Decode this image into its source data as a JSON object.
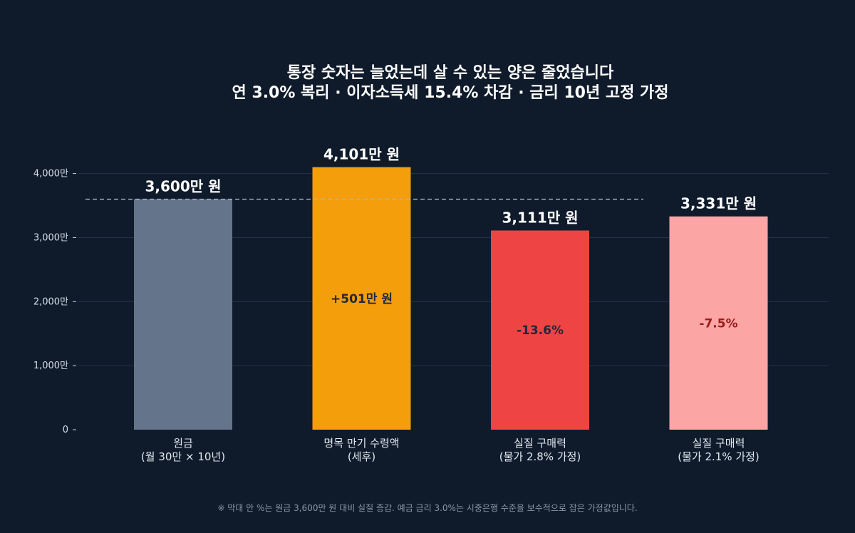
{
  "chart_data": {
    "type": "bar",
    "title": "통장 숫자는 늘었는데 살 수 있는 양은 줄었습니다",
    "subtitle": "연 3.0% 복리 · 이자소득세 15.4% 차감 · 금리 10년 고정 가정",
    "footnote": "※ 막대 안 %는 원금 3,600만 원 대비 실질 증감. 예금 금리 3.0%는 시중은행 수준을 보수적으로 잡은 가정값입니다.",
    "categories": [
      [
        "원금",
        "(월 30만 × 10년)"
      ],
      [
        "명목 만기 수령액",
        "(세후)"
      ],
      [
        "실질 구매력",
        "(물가 2.8% 가정)"
      ],
      [
        "실질 구매력",
        "(물가 2.1% 가정)"
      ]
    ],
    "values": [
      3600,
      4101,
      3111,
      3331
    ],
    "value_labels": [
      "3,600만 원",
      "4,101만 원",
      "3,111만 원",
      "3,331만 원"
    ],
    "inner_labels": [
      "",
      "+501만 원",
      "-13.6%",
      "-7.5%"
    ],
    "colors": [
      "#64748b",
      "#f59e0b",
      "#ef4444",
      "#fca5a5"
    ],
    "inner_label_colors": [
      "#1f2937",
      "#1f2937",
      "#1f2937",
      "#991b1b"
    ],
    "reference_line": 3600,
    "yticks": [
      0,
      1000,
      2000,
      3000,
      4000
    ],
    "ytick_labels": [
      "0",
      "1,000만",
      "2,000만",
      "3,000만",
      "4,000만"
    ],
    "ylim": [
      0,
      4500
    ],
    "grid": true
  }
}
